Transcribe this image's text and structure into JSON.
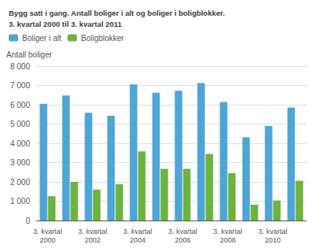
{
  "chart_data": {
    "type": "bar",
    "title": "Bygg satt i gang. Antall boliger i alt og boliger i boligblokker.",
    "subtitle": "3. kvartal 2000 til 3. kvartal 2011",
    "ylabel": "Antall boliger",
    "categories": [
      "3. kvartal\n2000",
      null,
      "3. kvartal\n2002",
      null,
      "3. kvartal\n2004",
      null,
      "3. kvartal\n2006",
      null,
      "3. kvartal\n2008",
      null,
      "3. kvartal\n2010",
      null
    ],
    "series": [
      {
        "name": "Boliger i alt",
        "color": "#4da6d6",
        "values": [
          6050,
          6480,
          5580,
          5430,
          7050,
          6620,
          6720,
          7120,
          6140,
          4320,
          4900,
          5860
        ]
      },
      {
        "name": "Boligblokker",
        "color": "#6db33f",
        "values": [
          1260,
          2000,
          1600,
          1880,
          3580,
          2680,
          2680,
          3450,
          2460,
          820,
          1040,
          2060
        ]
      }
    ],
    "ylim": [
      0,
      8000
    ],
    "yticks": [
      0,
      {
        "value": 1000,
        "label": "1 000"
      },
      {
        "value": 2000,
        "label": "2 000"
      },
      {
        "value": 3000,
        "label": "3 000"
      },
      {
        "value": 4000,
        "label": "4 000"
      },
      {
        "value": 5000,
        "label": "5 000"
      },
      {
        "value": 6000,
        "label": "6 000"
      },
      {
        "value": 7000,
        "label": "7 000"
      },
      {
        "value": 8000,
        "label": "8 000"
      }
    ],
    "grid": true,
    "legend": "upper left"
  }
}
